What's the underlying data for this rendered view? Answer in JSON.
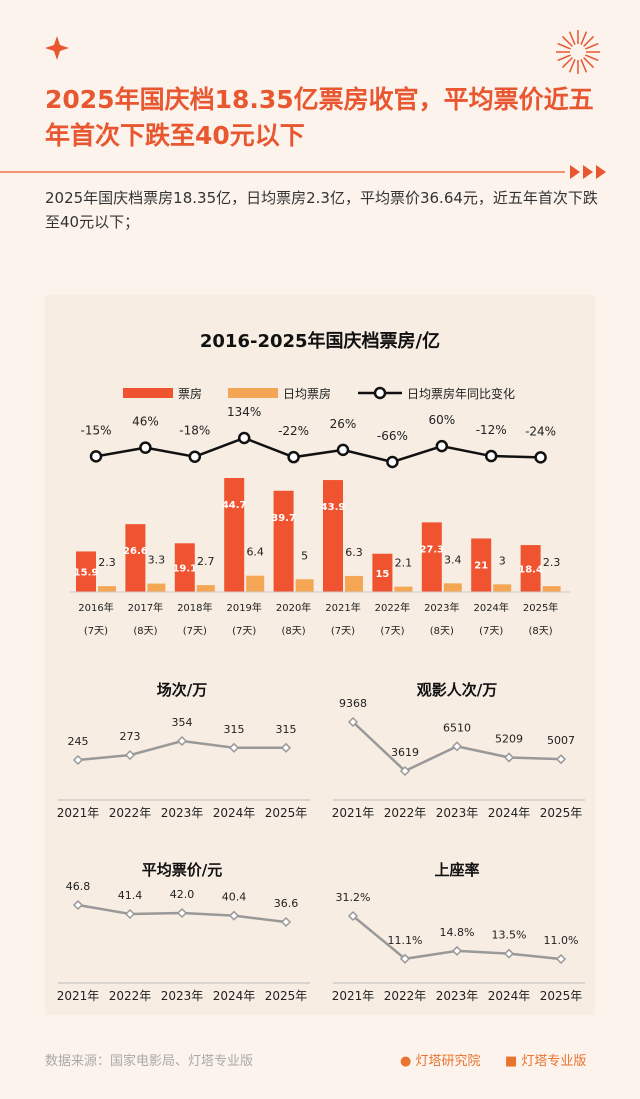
{
  "title": "2025年国庆档18.35亿票房收官，平均票价近五年首次下跌至40元以下",
  "subtitle": "2025年国庆档票房18.35亿，日均票房2.3亿，平均票价36.64元，近五年首次下跌至40元以下；",
  "source": "数据来源：国家电影局、灯塔专业版",
  "brands": [
    "灯塔研究院",
    "灯塔专业版"
  ],
  "colors": {
    "accent": "#e8572f",
    "bar_main": "#f0532f",
    "bar_daily": "#f4a655",
    "line": "#111111",
    "small_line": "#999999"
  },
  "chart_data": [
    {
      "type": "bar+line",
      "title": "2016-2025年国庆档票房/亿",
      "legend": [
        "票房",
        "日均票房",
        "日均票房年同比变化"
      ],
      "legend_position": "top",
      "categories": [
        "2016年",
        "2017年",
        "2018年",
        "2019年",
        "2020年",
        "2021年",
        "2022年",
        "2023年",
        "2024年",
        "2025年"
      ],
      "days": [
        "(7天)",
        "(8天)",
        "(7天)",
        "(7天)",
        "(8天)",
        "(7天)",
        "(7天)",
        "(8天)",
        "(7天)",
        "(8天)"
      ],
      "series": [
        {
          "name": "票房",
          "type": "bar",
          "values": [
            15.9,
            26.6,
            19.1,
            44.7,
            39.7,
            43.9,
            15.0,
            27.3,
            21.0,
            18.4
          ]
        },
        {
          "name": "日均票房",
          "type": "bar",
          "values": [
            2.3,
            3.3,
            2.7,
            6.4,
            5.0,
            6.3,
            2.1,
            3.4,
            3.0,
            2.3
          ]
        },
        {
          "name": "日均票房年同比变化",
          "type": "line",
          "values": [
            -15,
            46,
            -18,
            134,
            -22,
            26,
            -66,
            60,
            -12,
            -24
          ],
          "labels": [
            "-15%",
            "46%",
            "-18%",
            "134%",
            "-22%",
            "26%",
            "-66%",
            "60%",
            "-12%",
            "-24%"
          ]
        }
      ]
    },
    {
      "type": "line",
      "title": "场次/万",
      "categories": [
        "2021年",
        "2022年",
        "2023年",
        "2024年",
        "2025年"
      ],
      "values": [
        245,
        273,
        354,
        315,
        315
      ],
      "labels": [
        "245",
        "273",
        "354",
        "315",
        "315"
      ]
    },
    {
      "type": "line",
      "title": "观影人次/万",
      "categories": [
        "2021年",
        "2022年",
        "2023年",
        "2024年",
        "2025年"
      ],
      "values": [
        9368,
        3619,
        6510,
        5209,
        5007
      ],
      "labels": [
        "9368",
        "3619",
        "6510",
        "5209",
        "5007"
      ]
    },
    {
      "type": "line",
      "title": "平均票价/元",
      "categories": [
        "2021年",
        "2022年",
        "2023年",
        "2024年",
        "2025年"
      ],
      "values": [
        46.8,
        41.4,
        42.0,
        40.4,
        36.6
      ],
      "labels": [
        "46.8",
        "41.4",
        "42.0",
        "40.4",
        "36.6"
      ]
    },
    {
      "type": "line",
      "title": "上座率",
      "categories": [
        "2021年",
        "2022年",
        "2023年",
        "2024年",
        "2025年"
      ],
      "values": [
        31.2,
        11.1,
        14.8,
        13.5,
        11.0
      ],
      "labels": [
        "31.2%",
        "11.1%",
        "14.8%",
        "13.5%",
        "11.0%"
      ]
    }
  ]
}
